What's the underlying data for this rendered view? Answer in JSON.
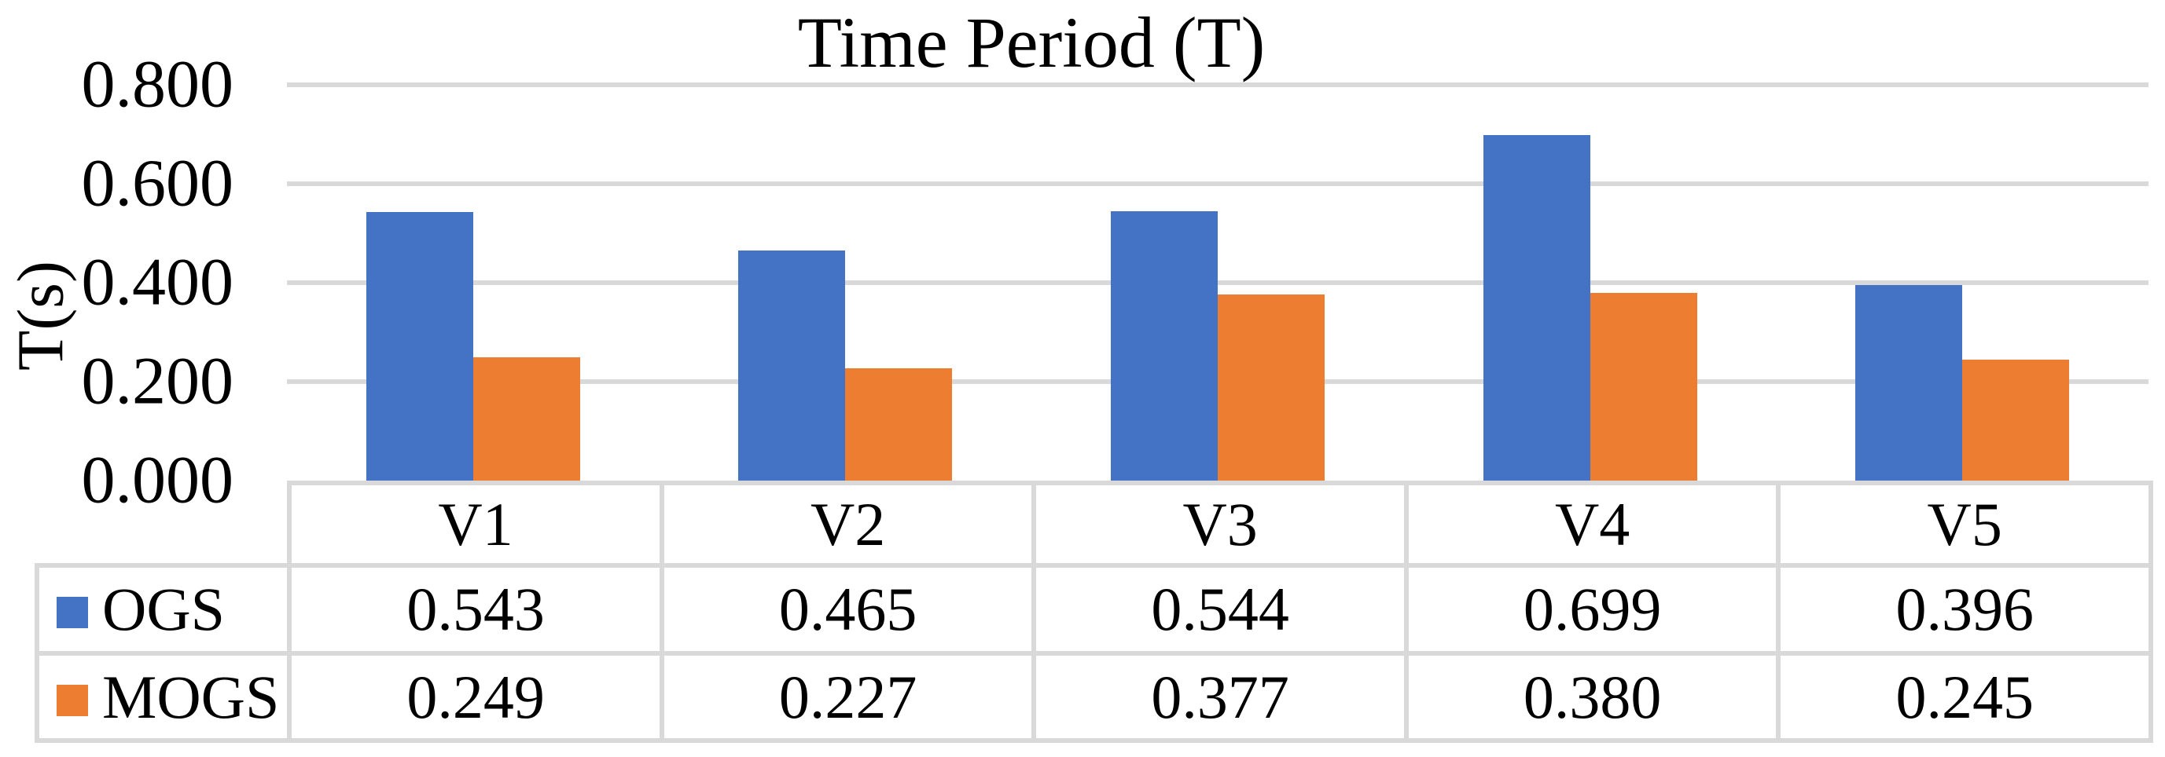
{
  "chart_data": {
    "type": "bar",
    "title": "Time Period (T)",
    "ylabel": "T(s)",
    "xlabel": "",
    "categories": [
      "V1",
      "V2",
      "V3",
      "V4",
      "V5"
    ],
    "series": [
      {
        "name": "OGS",
        "color": "#4472C4",
        "values": [
          "0.543",
          "0.465",
          "0.544",
          "0.699",
          "0.396"
        ]
      },
      {
        "name": "MOGS",
        "color": "#ED7D31",
        "values": [
          "0.249",
          "0.227",
          "0.377",
          "0.380",
          "0.245"
        ]
      }
    ],
    "ylim": [
      0,
      0.8
    ],
    "yticks": [
      "0.000",
      "0.200",
      "0.400",
      "0.600",
      "0.800"
    ],
    "ytick_format": "0.000",
    "grid": "horizontal",
    "gridline_color": "#D9D9D9",
    "legend_position": "data-table-left",
    "data_table_shown": true
  }
}
